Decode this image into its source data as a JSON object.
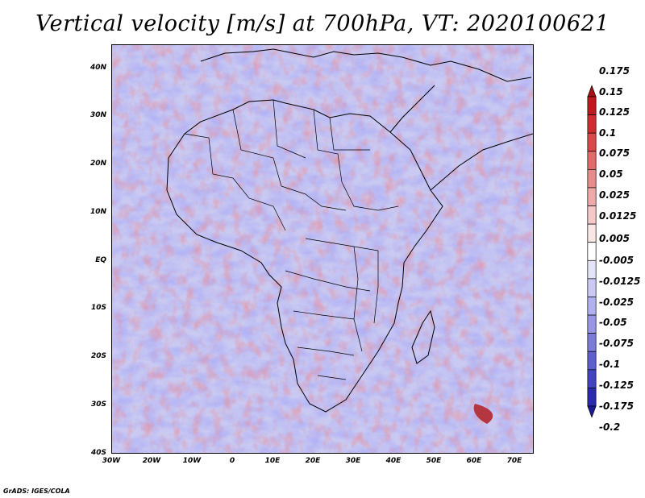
{
  "title": "Vertical velocity [m/s] at 700hPa, VT: 2020100621",
  "footer": "GrADS: IGES/COLA",
  "map": {
    "lat_labels": [
      "40N",
      "30N",
      "20N",
      "10N",
      "EQ",
      "10S",
      "20S",
      "30S",
      "40S"
    ],
    "lon_labels": [
      "30W",
      "20W",
      "10W",
      "0",
      "10E",
      "20E",
      "30E",
      "40E",
      "50E",
      "60E",
      "70E"
    ],
    "lat_range": [
      -40,
      45
    ],
    "lon_range": [
      -30,
      75
    ]
  },
  "colorbar": {
    "labels": [
      "0.175",
      "0.15",
      "0.125",
      "0.1",
      "0.075",
      "0.05",
      "0.025",
      "0.0125",
      "0.005",
      "-0.005",
      "-0.0125",
      "-0.025",
      "-0.05",
      "-0.075",
      "-0.1",
      "-0.125",
      "-0.175",
      "-0.2"
    ],
    "colors": [
      "#a50f15",
      "#c0191d",
      "#d02c2f",
      "#dc4748",
      "#e36a6a",
      "#ea8b8b",
      "#f0a9a9",
      "#f6c9c9",
      "#fbe6e6",
      "#ffffff",
      "#e3e3fa",
      "#cacaf4",
      "#b1b1ee",
      "#9797e6",
      "#7b7bdc",
      "#5e5ed0",
      "#4242c2",
      "#2a2ab0",
      "#1a1a96"
    ]
  }
}
